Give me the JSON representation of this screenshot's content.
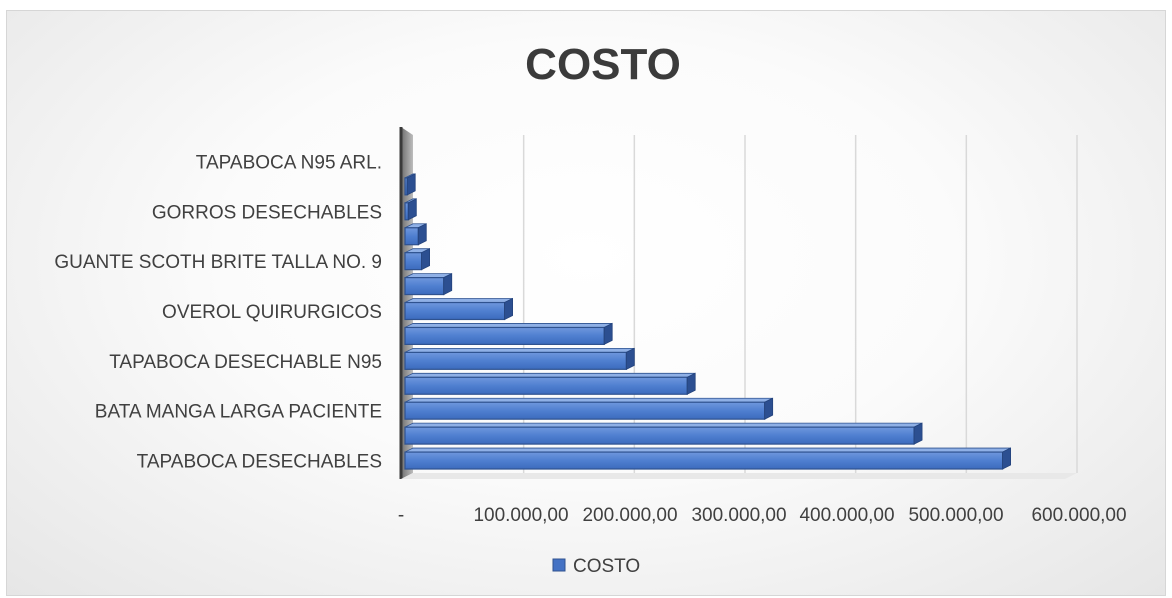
{
  "chart_data": {
    "type": "bar",
    "orientation": "horizontal",
    "title": "COSTO",
    "categories": [
      "TAPABOCA DESECHABLES",
      "",
      "BATA MANGA LARGA PACIENTE",
      "",
      "TAPABOCA DESECHABLE N95",
      "",
      "OVEROL QUIRURGICOS",
      "",
      "GUANTE SCOTH BRITE TALLA NO. 9",
      "",
      "GORROS DESECHABLES",
      "",
      "TAPABOCA N95 ARL."
    ],
    "series": [
      {
        "name": "COSTO",
        "color": "#4472C4",
        "values": [
          540000,
          460000,
          325000,
          255000,
          200000,
          180000,
          90000,
          35000,
          15000,
          12000,
          3000,
          2000,
          0
        ]
      }
    ],
    "xlim": [
      0,
      600000
    ],
    "tick_labels": [
      "-",
      "100.000,00",
      "200.000,00",
      "300.000,00",
      "400.000,00",
      "500.000,00",
      "600.000,00"
    ],
    "grid": true,
    "legend": {
      "position": "bottom",
      "entries": [
        "COSTO"
      ]
    },
    "style": "3d-clustered-bar"
  }
}
